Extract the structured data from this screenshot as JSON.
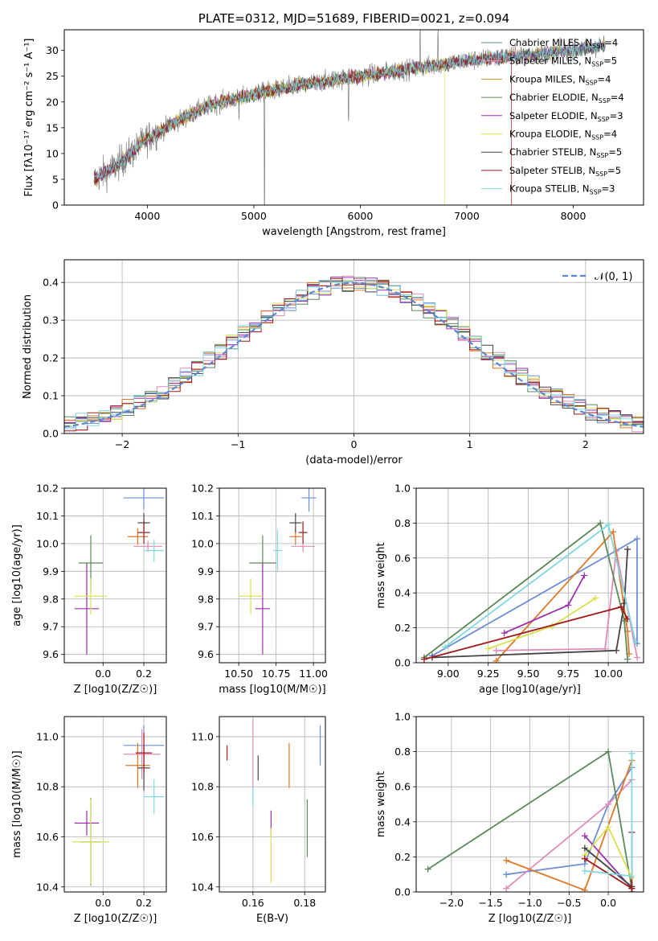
{
  "chart_data": [
    {
      "id": "spectrum",
      "type": "line",
      "title": "PLATE=0312, MJD=51689, FIBERID=0021, z=0.094",
      "xlabel": "wavelength [Angstrom, rest frame]",
      "ylabel": "Flux [fλ10⁻¹⁷ erg cm⁻² s⁻¹ A⁻¹]",
      "xlim": [
        3220,
        8660
      ],
      "ylim": [
        0,
        34
      ],
      "xticks": [
        4000,
        5000,
        6000,
        7000,
        8000
      ],
      "yticks": [
        0,
        5,
        10,
        15,
        20,
        25,
        30
      ],
      "grid": false,
      "legend_placement": "top-right",
      "series": [
        {
          "name": "Chabrier MILES, N_SSP=4",
          "label": "Chabrier MILES, N",
          "n": "=4",
          "color": "#5a8a8a"
        },
        {
          "name": "Salpeter MILES, N_SSP=5",
          "label": "Salpeter MILES, N",
          "n": "=5",
          "color": "#e8a0b8"
        },
        {
          "name": "Kroupa MILES, N_SSP=4",
          "label": "Kroupa MILES, N",
          "n": "=4",
          "color": "#c8962a"
        },
        {
          "name": "Chabrier ELODIE, N_SSP=4",
          "label": "Chabrier ELODIE, N",
          "n": "=4",
          "color": "#5a8a5a"
        },
        {
          "name": "Salpeter ELODIE, N_SSP=3",
          "label": "Salpeter ELODIE, N",
          "n": "=3",
          "color": "#9b30b0"
        },
        {
          "name": "Kroupa ELODIE, N_SSP=4",
          "label": "Kroupa ELODIE, N",
          "n": "=4",
          "color": "#d8e050"
        },
        {
          "name": "Chabrier STELIB, N_SSP=5",
          "label": "Chabrier STELIB, N",
          "n": "=5",
          "color": "#444444"
        },
        {
          "name": "Salpeter STELIB, N_SSP=5",
          "label": "Salpeter STELIB, N",
          "n": "=5",
          "color": "#a01818"
        },
        {
          "name": "Kroupa STELIB, N_SSP=3",
          "label": "Kroupa STELIB, N",
          "n": "=3",
          "color": "#80d8e0"
        }
      ],
      "continuum_x": [
        3500,
        3700,
        3900,
        4000,
        4300,
        4600,
        5000,
        5500,
        6000,
        6500,
        7000,
        7500,
        8000,
        8300
      ],
      "continuum_y": [
        5,
        7.5,
        11,
        13,
        16.5,
        19.5,
        21.5,
        23.5,
        25,
        26.5,
        28,
        29,
        30,
        31
      ]
    },
    {
      "id": "residuals",
      "type": "line",
      "xlabel": "(data-model)/error",
      "ylabel": "Normed distribution",
      "xlim": [
        -2.5,
        2.5
      ],
      "ylim": [
        0,
        0.46
      ],
      "xticks": [
        -2,
        -1,
        0,
        1,
        2
      ],
      "yticks": [
        0.0,
        0.1,
        0.2,
        0.3,
        0.4
      ],
      "grid": true,
      "legend_placement": "top-right",
      "legend": "𝒩(0, 1)",
      "bin_width": 0.1,
      "colors": [
        "#6b8fd8",
        "#e08ab8",
        "#e07828",
        "#5a8a5a",
        "#9b30b0",
        "#d8e050",
        "#444444",
        "#a01818",
        "#80d8e0"
      ]
    },
    {
      "id": "age-vs-Z",
      "type": "scatter",
      "xlabel": "Z [log10(Z/Z☉)]",
      "ylabel": "age [log10(age/yr)]",
      "xlim": [
        -0.19,
        0.31
      ],
      "ylim": [
        9.57,
        10.2
      ],
      "xticks": [
        0.0,
        0.2
      ],
      "yticks": [
        9.6,
        9.7,
        9.8,
        9.9,
        10.0,
        10.1,
        10.2
      ],
      "grid": true,
      "points": [
        {
          "x": 0.2,
          "y": 10.165,
          "xerr": 0.1,
          "yerr": 0.04,
          "color": "#6b8fd8"
        },
        {
          "x": 0.22,
          "y": 9.99,
          "xerr": 0.07,
          "yerr": 0.02,
          "color": "#e08ab8"
        },
        {
          "x": 0.17,
          "y": 10.025,
          "xerr": 0.05,
          "yerr": 0.03,
          "color": "#e07828"
        },
        {
          "x": -0.06,
          "y": 9.93,
          "xerr": 0.06,
          "yerr": 0.1,
          "color": "#5a8a5a"
        },
        {
          "x": -0.08,
          "y": 9.765,
          "xerr": 0.06,
          "yerr": 0.165,
          "color": "#9b30b0"
        },
        {
          "x": -0.06,
          "y": 9.81,
          "xerr": 0.08,
          "yerr": 0.065,
          "color": "#d8e050"
        },
        {
          "x": 0.2,
          "y": 10.075,
          "xerr": 0.03,
          "yerr": 0.035,
          "color": "#444444"
        },
        {
          "x": 0.2,
          "y": 10.04,
          "xerr": 0.03,
          "yerr": 0.04,
          "color": "#a01818"
        },
        {
          "x": 0.25,
          "y": 9.975,
          "xerr": 0.05,
          "yerr": 0.04,
          "color": "#80d8e0"
        }
      ]
    },
    {
      "id": "age-vs-mass",
      "type": "scatter",
      "xlabel": "mass [log10(M/M☉)]",
      "ylabel": "",
      "xlim": [
        10.37,
        11.08
      ],
      "ylim": [
        9.57,
        10.2
      ],
      "xticks": [
        10.5,
        10.75,
        11.0
      ],
      "yticks": [
        9.6,
        9.7,
        9.8,
        9.9,
        10.0,
        10.1,
        10.2
      ],
      "grid": true,
      "points": [
        {
          "x": 10.97,
          "y": 10.165,
          "xerr": 0.05,
          "yerr": 0.05,
          "color": "#6b8fd8"
        },
        {
          "x": 10.93,
          "y": 9.99,
          "xerr": 0.08,
          "yerr": 0.02,
          "color": "#e08ab8"
        },
        {
          "x": 10.88,
          "y": 10.025,
          "xerr": 0.04,
          "yerr": 0.03,
          "color": "#e07828"
        },
        {
          "x": 10.66,
          "y": 9.93,
          "xerr": 0.09,
          "yerr": 0.1,
          "color": "#5a8a5a"
        },
        {
          "x": 10.66,
          "y": 9.765,
          "xerr": 0.05,
          "yerr": 0.165,
          "color": "#9b30b0"
        },
        {
          "x": 10.58,
          "y": 9.81,
          "xerr": 0.08,
          "yerr": 0.065,
          "color": "#d8e050"
        },
        {
          "x": 10.88,
          "y": 10.075,
          "xerr": 0.04,
          "yerr": 0.035,
          "color": "#444444"
        },
        {
          "x": 10.93,
          "y": 10.04,
          "xerr": 0.03,
          "yerr": 0.04,
          "color": "#a01818"
        },
        {
          "x": 10.76,
          "y": 9.975,
          "xerr": 0.03,
          "yerr": 0.075,
          "color": "#80d8e0"
        }
      ]
    },
    {
      "id": "mass-weight-vs-age",
      "type": "line",
      "xlabel": "age [log10(age/yr)]",
      "ylabel": "mass weight",
      "xlim": [
        8.8,
        10.22
      ],
      "ylim": [
        0,
        1.0
      ],
      "xticks": [
        9.0,
        9.25,
        9.5,
        9.75,
        10.0
      ],
      "yticks": [
        0.0,
        0.2,
        0.4,
        0.6,
        0.8,
        1.0
      ],
      "grid": true,
      "series": [
        {
          "color": "#6b8fd8",
          "x": [
            8.9,
            10.18,
            10.18
          ],
          "y": [
            0.04,
            0.71,
            0.11
          ]
        },
        {
          "color": "#e08ab8",
          "x": [
            9.3,
            9.98,
            10.05,
            10.18
          ],
          "y": [
            0.07,
            0.08,
            0.64,
            0.03
          ]
        },
        {
          "color": "#e07828",
          "x": [
            9.3,
            10.03,
            10.12,
            10.13
          ],
          "y": [
            0.01,
            0.75,
            0.18,
            0.05
          ]
        },
        {
          "color": "#5a8a5a",
          "x": [
            8.85,
            9.95,
            10.1,
            10.12
          ],
          "y": [
            0.03,
            0.8,
            0.24,
            0.02
          ]
        },
        {
          "color": "#9b30b0",
          "x": [
            9.35,
            9.75,
            9.85
          ],
          "y": [
            0.17,
            0.33,
            0.5
          ]
        },
        {
          "color": "#d8e050",
          "x": [
            9.25,
            9.65,
            9.92
          ],
          "y": [
            0.08,
            0.21,
            0.37
          ]
        },
        {
          "color": "#444444",
          "x": [
            8.9,
            10.05,
            10.1,
            10.12
          ],
          "y": [
            0.03,
            0.07,
            0.34,
            0.65
          ]
        },
        {
          "color": "#a01818",
          "x": [
            8.85,
            10.08,
            10.12
          ],
          "y": [
            0.02,
            0.32,
            0.25
          ]
        },
        {
          "color": "#80d8e0",
          "x": [
            8.98,
            10.0,
            10.17
          ],
          "y": [
            0.09,
            0.79,
            0.12
          ]
        }
      ]
    },
    {
      "id": "mass-vs-Z",
      "type": "scatter",
      "xlabel": "Z [log10(Z/Z☉)]",
      "ylabel": "mass [log10(M/M☉)]",
      "xlim": [
        -0.19,
        0.31
      ],
      "ylim": [
        10.38,
        11.08
      ],
      "xticks": [
        0.0,
        0.2
      ],
      "yticks": [
        10.4,
        10.6,
        10.8,
        11.0
      ],
      "grid": true,
      "points": [
        {
          "x": 0.2,
          "y": 10.965,
          "xerr": 0.1,
          "yerr": 0.08,
          "color": "#6b8fd8"
        },
        {
          "x": 0.19,
          "y": 10.93,
          "xerr": 0.09,
          "yerr": 0.1,
          "color": "#e08ab8"
        },
        {
          "x": 0.17,
          "y": 10.885,
          "xerr": 0.06,
          "yerr": 0.09,
          "color": "#e07828"
        },
        {
          "x": -0.06,
          "y": 10.58,
          "xerr": 0.05,
          "yerr": 0.175,
          "color": "#5a8a5a"
        },
        {
          "x": -0.08,
          "y": 10.655,
          "xerr": 0.06,
          "yerr": 0.05,
          "color": "#9b30b0"
        },
        {
          "x": -0.06,
          "y": 10.58,
          "xerr": 0.09,
          "yerr": 0.17,
          "color": "#d8e050"
        },
        {
          "x": 0.2,
          "y": 10.875,
          "xerr": 0.03,
          "yerr": 0.09,
          "color": "#444444"
        },
        {
          "x": 0.2,
          "y": 10.935,
          "xerr": 0.04,
          "yerr": 0.08,
          "color": "#a01818"
        },
        {
          "x": 0.25,
          "y": 10.76,
          "xerr": 0.05,
          "yerr": 0.07,
          "color": "#80d8e0"
        }
      ]
    },
    {
      "id": "mass-vs-EBV",
      "type": "scatter",
      "xlabel": "E(B-V)",
      "ylabel": "",
      "xlim": [
        0.147,
        0.188
      ],
      "ylim": [
        10.38,
        11.08
      ],
      "xticks": [
        0.16,
        0.18
      ],
      "yticks": [
        10.4,
        10.6,
        10.8,
        11.0
      ],
      "grid": true,
      "points": [
        {
          "x": 0.186,
          "y": 10.965,
          "yerr": 0.08,
          "color": "#6b8fd8"
        },
        {
          "x": 0.16,
          "y": 10.93,
          "yerr": 0.14,
          "color": "#e08ab8"
        },
        {
          "x": 0.174,
          "y": 10.885,
          "yerr": 0.09,
          "color": "#e07828"
        },
        {
          "x": 0.181,
          "y": 10.635,
          "yerr": 0.115,
          "color": "#5a8a5a"
        },
        {
          "x": 0.167,
          "y": 10.655,
          "yerr": 0.05,
          "color": "#9b30b0"
        },
        {
          "x": 0.167,
          "y": 10.525,
          "yerr": 0.11,
          "color": "#d8e050"
        },
        {
          "x": 0.162,
          "y": 10.875,
          "yerr": 0.05,
          "color": "#444444"
        },
        {
          "x": 0.15,
          "y": 10.935,
          "yerr": 0.03,
          "color": "#a01818"
        },
        {
          "x": 0.16,
          "y": 10.76,
          "yerr": 0.04,
          "color": "#80d8e0"
        }
      ]
    },
    {
      "id": "mass-weight-vs-Z",
      "type": "line",
      "xlabel": "Z [log10(Z/Z☉)]",
      "ylabel": "mass weight",
      "xlim": [
        -2.45,
        0.45
      ],
      "ylim": [
        0,
        1.0
      ],
      "xticks": [
        -2.0,
        -1.5,
        -1.0,
        -0.5,
        0.0
      ],
      "yticks": [
        0.0,
        0.2,
        0.4,
        0.6,
        0.8,
        1.0
      ],
      "grid": true,
      "series": [
        {
          "color": "#6b8fd8",
          "x": [
            -1.3,
            -0.3,
            0.0,
            0.3
          ],
          "y": [
            0.1,
            0.16,
            0.5,
            0.71
          ]
        },
        {
          "color": "#e08ab8",
          "x": [
            -1.3,
            0.0,
            0.3
          ],
          "y": [
            0.02,
            0.5,
            0.64
          ]
        },
        {
          "color": "#e07828",
          "x": [
            -1.3,
            -0.3,
            0.3
          ],
          "y": [
            0.18,
            0.01,
            0.75
          ]
        },
        {
          "color": "#5a8a5a",
          "x": [
            -2.3,
            0.0,
            0.3
          ],
          "y": [
            0.13,
            0.8,
            0.02
          ]
        },
        {
          "color": "#9b30b0",
          "x": [
            -0.3,
            0.3,
            0.3
          ],
          "y": [
            0.32,
            0.02,
            0.0
          ]
        },
        {
          "color": "#d8e050",
          "x": [
            -0.3,
            0.0,
            0.3
          ],
          "y": [
            0.21,
            0.37,
            0.08
          ]
        },
        {
          "color": "#444444",
          "x": [
            -0.3,
            0.3,
            0.3
          ],
          "y": [
            0.25,
            0.03,
            0.0
          ]
        },
        {
          "color": "#a01818",
          "x": [
            -0.3,
            0.3,
            0.3
          ],
          "y": [
            0.19,
            0.02,
            0.34
          ]
        },
        {
          "color": "#80d8e0",
          "x": [
            -0.3,
            0.3,
            0.3
          ],
          "y": [
            0.12,
            0.09,
            0.79
          ]
        }
      ]
    }
  ]
}
